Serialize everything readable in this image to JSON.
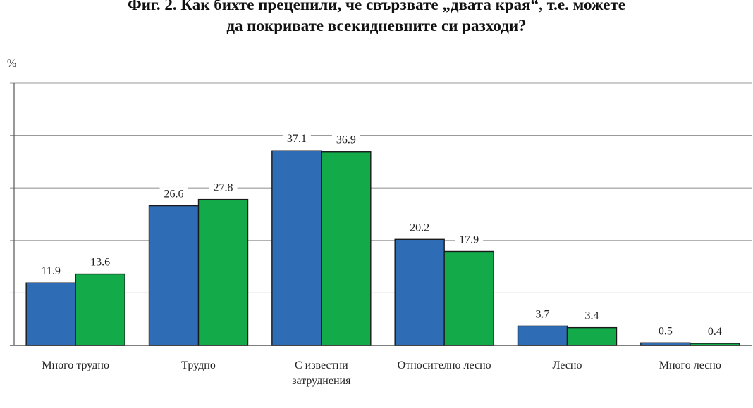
{
  "title_line1": "Фиг. 2. Как бихте преценили, че свързвате „двата края“, т.е. можете",
  "title_line2": "да покривате всекидневните си разходи?",
  "chart_data": {
    "type": "bar",
    "title": "Фиг. 2. Как бихте преценили, че свързвате „двата края“, т.е. можете да покривате всекидневните си разходи?",
    "ylabel": "%",
    "xlabel": "",
    "ylim": [
      0,
      50
    ],
    "yticks": [
      0,
      10,
      20,
      30,
      40,
      50
    ],
    "grid": true,
    "categories": [
      [
        "Много трудно"
      ],
      [
        "Трудно"
      ],
      [
        "С известни",
        "затруднения"
      ],
      [
        "Относително лесно"
      ],
      [
        "Лесно"
      ],
      [
        "Много лесно"
      ]
    ],
    "series": [
      {
        "color": "#2e6db5",
        "values": [
          11.9,
          26.6,
          37.1,
          20.2,
          3.7,
          0.5
        ]
      },
      {
        "color": "#13aa4a",
        "values": [
          13.6,
          27.8,
          36.9,
          17.9,
          3.4,
          0.4
        ]
      }
    ],
    "labels": [
      [
        "11.9",
        "26.6",
        "37.1",
        "20.2",
        "3.7",
        "0.5"
      ],
      [
        "13.6",
        "27.8",
        "36.9",
        "17.9",
        "3.4",
        "0.4"
      ]
    ]
  }
}
